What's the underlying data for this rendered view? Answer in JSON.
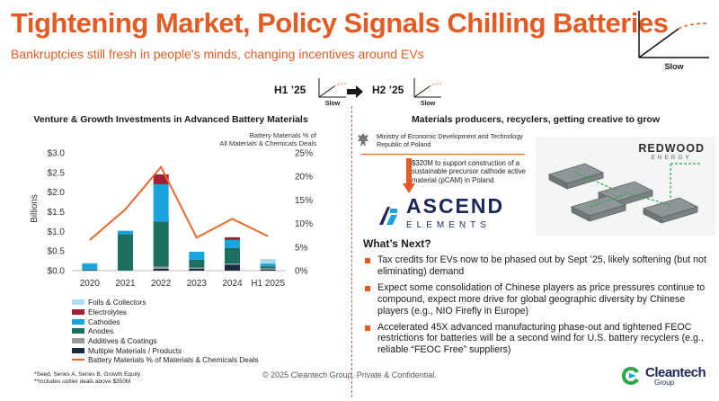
{
  "header": {
    "title": "Tightening Market, Policy Signals Chilling Batteries",
    "subtitle": "Bankruptcies still fresh in people’s minds, changing incentives around EVs",
    "trend_label": "Slow"
  },
  "periods": {
    "from": "H1 ’25",
    "to": "H2 ’25",
    "from_trend": "Slow",
    "to_trend": "Slow"
  },
  "chart_data": {
    "type": "bar",
    "stacked": true,
    "title": "Venture & Growth Investments in Advanced Battery Materials",
    "ylabel": "Billions",
    "y2label": "Battery Materials % of All Materials & Chemicals Deals",
    "categories": [
      "2020",
      "2021",
      "2022",
      "2023",
      "2024",
      "H1 2025"
    ],
    "ylim": [
      0,
      3.0
    ],
    "y2lim": [
      0,
      25
    ],
    "yticks": [
      "$0.0",
      "$0.5",
      "$1.0",
      "$1.5",
      "$2.0",
      "$2.5",
      "$3.0"
    ],
    "y2ticks": [
      "0%",
      "5%",
      "10%",
      "15%",
      "20%",
      "25%"
    ],
    "series": [
      {
        "name": "Multiple Materials / Products",
        "color": "#1b2b3f",
        "values": [
          0.0,
          0.0,
          0.05,
          0.05,
          0.15,
          0.03
        ]
      },
      {
        "name": "Additives & Coatings",
        "color": "#9a9a9a",
        "values": [
          0.0,
          0.0,
          0.05,
          0.03,
          0.03,
          0.03
        ]
      },
      {
        "name": "Anodes",
        "color": "#1c6f63",
        "values": [
          0.03,
          0.93,
          1.15,
          0.2,
          0.4,
          0.05
        ]
      },
      {
        "name": "Cathodes",
        "color": "#1aa4df",
        "values": [
          0.15,
          0.08,
          0.95,
          0.2,
          0.2,
          0.07
        ]
      },
      {
        "name": "Electrolytes",
        "color": "#a31f34",
        "values": [
          0.0,
          0.0,
          0.25,
          0.0,
          0.07,
          0.0
        ]
      },
      {
        "name": "Foils & Collectors",
        "color": "#a8dcf2",
        "values": [
          0.02,
          0.02,
          0.0,
          0.0,
          0.0,
          0.12
        ]
      }
    ],
    "line": {
      "name": "Battery Materials % of Materials & Chemicals Deals",
      "color": "#e8692b",
      "values": [
        6.5,
        13,
        22,
        7,
        11,
        7.3
      ]
    },
    "legend_order": [
      "Foils & Collectors",
      "Electrolytes",
      "Cathodes",
      "Anodes",
      "Additives & Coatings",
      "Multiple Materials / Products",
      "Battery Materials % of Materials & Chemicals Deals"
    ]
  },
  "right_panel": {
    "title": "Materials producers, recyclers, getting creative to grow",
    "ministry_line1": "Ministry of Economic Development and Technology",
    "ministry_line2": "Republic of Poland",
    "deal_text": "$320M to support construction of a sustainable precursor cathode active material (pCAM) in Poland",
    "ascend_name": "ASCEND",
    "ascend_sub": "ELEMENTS",
    "redwood_name": "REDWOOD",
    "redwood_sub": "ENERGY",
    "next_title": "What’s Next?",
    "bullets": [
      "Tax credits for EVs now to be phased out by Sept ’25, likely softening (but not eliminating) demand",
      "Expect some consolidation of Chinese players as price pressures continue to compound, expect more drive for global geographic diversity by Chinese players (e.g., NIO Firefly in Europe)",
      "Accelerated 45X advanced manufacturing phase-out and tightened FEOC restrictions for batteries will be a second wind for U.S. battery recyclers (e.g., reliable “FEOC Free” suppliers)"
    ]
  },
  "footer": {
    "footnote1": "*Seed, Series A, Series B, Growth Equity",
    "footnote2": "**Includes outlier deals above $350M",
    "copyright": "© 2025 Cleantech Group. Private & Confidential.",
    "logo_name": "Cleantech",
    "logo_group": "Group"
  },
  "colors": {
    "accent": "#e35a22",
    "navy": "#1c2757"
  }
}
